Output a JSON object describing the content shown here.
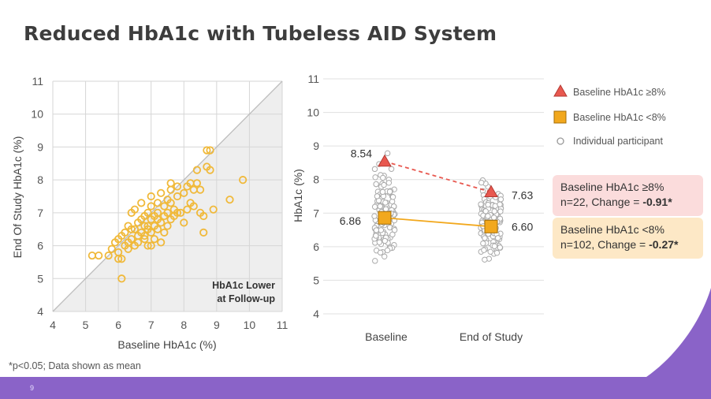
{
  "title": "Reduced HbA1c with Tubeless AID System",
  "footnote": "*p<0.05; Data shown as mean",
  "page_number": "9",
  "colors": {
    "accent_purple": "#8a63c8",
    "high_group": "#e8584f",
    "low_group": "#f2a81d",
    "participant": "#aaaaaa",
    "scatter_point": "#f0b93a"
  },
  "chart_data": [
    {
      "type": "scatter",
      "xlabel": "Baseline HbA1c (%)",
      "ylabel": "End Of Study HbA1c (%)",
      "xlim": [
        4,
        11
      ],
      "ylim": [
        4,
        11
      ],
      "xticks": [
        "4",
        "5",
        "6",
        "7",
        "8",
        "9",
        "10",
        "11"
      ],
      "yticks": [
        "4",
        "5",
        "6",
        "7",
        "8",
        "9",
        "10",
        "11"
      ],
      "annotation_line1": "HbA1c Lower",
      "annotation_line2": "at Follow-up",
      "points": [
        [
          5.2,
          5.7
        ],
        [
          5.4,
          5.7
        ],
        [
          5.7,
          5.7
        ],
        [
          5.8,
          5.9
        ],
        [
          5.9,
          6.1
        ],
        [
          6.0,
          6.2
        ],
        [
          6.0,
          5.8
        ],
        [
          6.0,
          5.6
        ],
        [
          6.1,
          6.3
        ],
        [
          6.1,
          5.0
        ],
        [
          6.2,
          6.4
        ],
        [
          6.2,
          6.0
        ],
        [
          6.3,
          6.1
        ],
        [
          6.3,
          5.9
        ],
        [
          6.3,
          6.6
        ],
        [
          6.4,
          6.2
        ],
        [
          6.4,
          7.0
        ],
        [
          6.5,
          6.5
        ],
        [
          6.5,
          6.0
        ],
        [
          6.5,
          7.1
        ],
        [
          6.6,
          6.3
        ],
        [
          6.6,
          6.7
        ],
        [
          6.6,
          6.1
        ],
        [
          6.7,
          6.8
        ],
        [
          6.7,
          6.4
        ],
        [
          6.7,
          7.3
        ],
        [
          6.8,
          6.2
        ],
        [
          6.8,
          6.6
        ],
        [
          6.8,
          6.9
        ],
        [
          6.9,
          6.5
        ],
        [
          6.9,
          7.0
        ],
        [
          6.9,
          6.0
        ],
        [
          7.0,
          6.8
        ],
        [
          7.0,
          7.2
        ],
        [
          7.0,
          6.4
        ],
        [
          7.0,
          7.5
        ],
        [
          7.1,
          6.6
        ],
        [
          7.1,
          6.9
        ],
        [
          7.1,
          6.2
        ],
        [
          7.2,
          7.0
        ],
        [
          7.2,
          6.5
        ],
        [
          7.2,
          7.3
        ],
        [
          7.3,
          6.7
        ],
        [
          7.3,
          6.1
        ],
        [
          7.3,
          7.6
        ],
        [
          7.4,
          6.9
        ],
        [
          7.4,
          6.4
        ],
        [
          7.4,
          7.2
        ],
        [
          7.5,
          7.0
        ],
        [
          7.5,
          6.6
        ],
        [
          7.5,
          7.4
        ],
        [
          7.6,
          7.7
        ],
        [
          7.6,
          6.8
        ],
        [
          7.6,
          7.9
        ],
        [
          7.7,
          7.1
        ],
        [
          7.7,
          6.9
        ],
        [
          7.8,
          7.5
        ],
        [
          7.8,
          7.8
        ],
        [
          7.9,
          7.0
        ],
        [
          8.0,
          6.7
        ],
        [
          8.0,
          7.6
        ],
        [
          8.1,
          7.8
        ],
        [
          8.2,
          7.3
        ],
        [
          8.2,
          7.9
        ],
        [
          8.3,
          7.2
        ],
        [
          8.3,
          7.7
        ],
        [
          8.4,
          7.9
        ],
        [
          8.4,
          8.3
        ],
        [
          8.5,
          7.7
        ],
        [
          8.5,
          7.0
        ],
        [
          8.6,
          6.4
        ],
        [
          8.6,
          6.9
        ],
        [
          8.7,
          8.4
        ],
        [
          8.7,
          8.9
        ],
        [
          8.8,
          8.3
        ],
        [
          8.8,
          8.9
        ],
        [
          8.9,
          7.1
        ],
        [
          9.4,
          7.4
        ],
        [
          9.8,
          8.0
        ],
        [
          7.6,
          7.3
        ],
        [
          6.9,
          6.6
        ],
        [
          7.2,
          6.8
        ],
        [
          6.8,
          6.3
        ],
        [
          7.0,
          6.0
        ],
        [
          6.4,
          6.5
        ],
        [
          6.1,
          5.6
        ],
        [
          8.1,
          7.1
        ],
        [
          7.8,
          7.0
        ]
      ]
    },
    {
      "type": "line",
      "ylabel": "HbA1c (%)",
      "ylim": [
        4,
        11
      ],
      "yticks": [
        "4",
        "5",
        "6",
        "7",
        "8",
        "9",
        "10",
        "11"
      ],
      "categories": [
        "Baseline",
        "End of Study"
      ],
      "series": [
        {
          "name": "Baseline HbA1c ≥8%",
          "values": [
            8.54,
            7.63
          ],
          "labels": [
            "8.54",
            "7.63"
          ]
        },
        {
          "name": "Baseline HbA1c <8%",
          "values": [
            6.86,
            6.6
          ],
          "labels": [
            "6.86",
            "6.60"
          ]
        }
      ],
      "participants_legend": "Individual participant"
    }
  ],
  "legend": {
    "high": "Baseline HbA1c ≥8%",
    "low": "Baseline HbA1c <8%",
    "individual": "Individual participant"
  },
  "boxes": {
    "high_line1": "Baseline HbA1c ≥8%",
    "high_line2": "n=22, Change = ",
    "high_change": "-0.91*",
    "low_line1": "Baseline HbA1c <8%",
    "low_line2": "n=102, Change = ",
    "low_change": "-0.27*"
  }
}
